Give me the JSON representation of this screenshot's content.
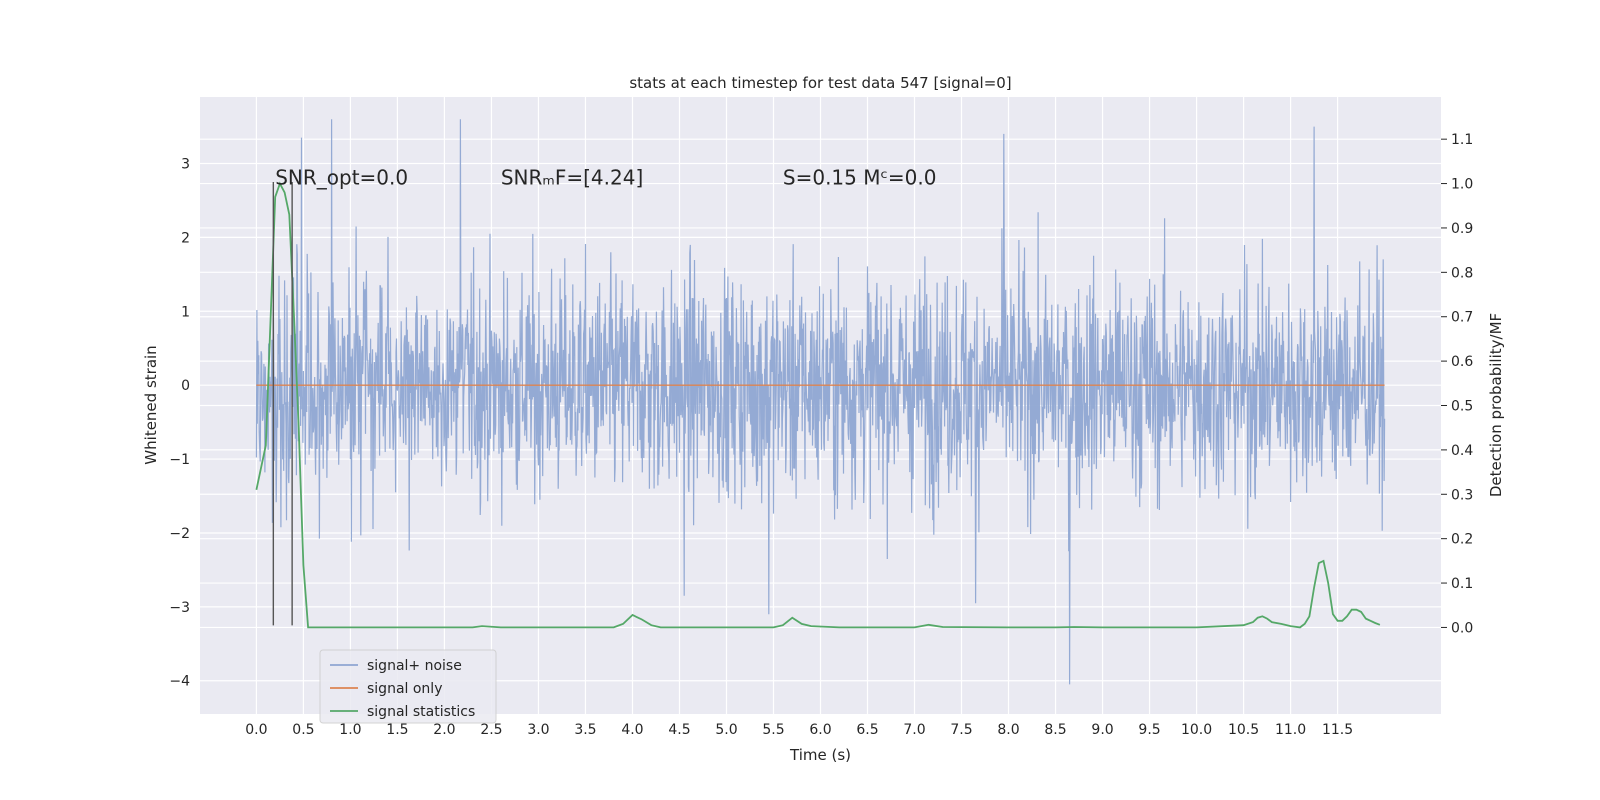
{
  "chart_data": {
    "type": "line",
    "title": "stats at each timestep for test data 547 [signal=0]",
    "xlabel": "Time (s)",
    "ylabel": "Whitened strain",
    "y2label": "Detection probability/MF",
    "xlim": [
      -0.6,
      12.6
    ],
    "ylim": [
      -4.45,
      3.9
    ],
    "y2lim": [
      -0.195,
      1.195
    ],
    "xticks": [
      0.0,
      0.5,
      1.0,
      1.5,
      2.0,
      2.5,
      3.0,
      3.5,
      4.0,
      4.5,
      5.0,
      5.5,
      6.0,
      6.5,
      7.0,
      7.5,
      8.0,
      8.5,
      9.0,
      9.5,
      10.0,
      10.5,
      11.0,
      11.5
    ],
    "xtick_labels": [
      "0.0",
      "0.5",
      "1.0",
      "1.5",
      "2.0",
      "2.5",
      "3.0",
      "3.5",
      "4.0",
      "4.5",
      "5.0",
      "5.5",
      "6.0",
      "6.5",
      "7.0",
      "7.5",
      "8.0",
      "8.5",
      "9.0",
      "9.5",
      "10.0",
      "10.5",
      "11.0",
      "11.5"
    ],
    "yticks": [
      -4,
      -3,
      -2,
      -1,
      0,
      1,
      2,
      3
    ],
    "ytick_labels": [
      "−4",
      "−3",
      "−2",
      "−1",
      "0",
      "1",
      "2",
      "3"
    ],
    "y2ticks": [
      0.0,
      0.1,
      0.2,
      0.3,
      0.4,
      0.5,
      0.6,
      0.7,
      0.8,
      0.9,
      1.0,
      1.1
    ],
    "y2tick_labels": [
      "0.0",
      "0.1",
      "0.2",
      "0.3",
      "0.4",
      "0.5",
      "0.6",
      "0.7",
      "0.8",
      "0.9",
      "1.0",
      "1.1"
    ],
    "grid": true,
    "legend": "lower-left",
    "annotations": [
      {
        "text": "SNR_opt=0.0",
        "x": 0.2,
        "y": 2.8
      },
      {
        "text": "SNRₘF=[4.24]",
        "x": 2.6,
        "y": 2.8
      },
      {
        "text": "S=0.15   Mᶜ=0.0",
        "x": 5.6,
        "y": 2.8
      }
    ],
    "vlines": [
      {
        "x": 0.18,
        "ymin": -3.25,
        "ymax": 2.75,
        "color": "#555555"
      },
      {
        "x": 0.38,
        "ymin": -3.25,
        "ymax": 2.75,
        "color": "#555555"
      }
    ],
    "series": [
      {
        "name": "signal+ noise",
        "axis": "left",
        "color": "#8fa6d2",
        "style": "dense-noise",
        "x_range": [
          0.0,
          12.0
        ],
        "envelope_min": -4.05,
        "envelope_max": 3.6,
        "notable_points": [
          {
            "x": 0.48,
            "y": 3.35
          },
          {
            "x": 0.8,
            "y": 3.6
          },
          {
            "x": 2.17,
            "y": 3.6
          },
          {
            "x": 7.95,
            "y": 3.4
          },
          {
            "x": 11.25,
            "y": 3.5
          },
          {
            "x": 8.65,
            "y": -4.05
          },
          {
            "x": 5.45,
            "y": -3.1
          },
          {
            "x": 7.65,
            "y": -2.95
          },
          {
            "x": 4.55,
            "y": -2.85
          }
        ]
      },
      {
        "name": "signal only",
        "axis": "left",
        "color": "#dd8452",
        "x": [
          0.0,
          12.0
        ],
        "y": [
          0.0,
          0.0
        ]
      },
      {
        "name": "signal statistics",
        "axis": "right",
        "color": "#55a868",
        "x": [
          0.0,
          0.05,
          0.1,
          0.15,
          0.2,
          0.25,
          0.3,
          0.35,
          0.4,
          0.45,
          0.5,
          0.55,
          0.6,
          1.0,
          1.5,
          2.0,
          2.3,
          2.4,
          2.6,
          3.0,
          3.5,
          3.8,
          3.9,
          4.0,
          4.1,
          4.2,
          4.3,
          5.0,
          5.5,
          5.6,
          5.7,
          5.8,
          5.9,
          6.2,
          7.0,
          7.15,
          7.3,
          8.0,
          8.5,
          8.7,
          9.0,
          10.0,
          10.5,
          10.6,
          10.65,
          10.7,
          10.75,
          10.8,
          10.9,
          11.0,
          11.1,
          11.15,
          11.2,
          11.25,
          11.3,
          11.35,
          11.4,
          11.45,
          11.5,
          11.55,
          11.6,
          11.65,
          11.7,
          11.75,
          11.8,
          11.85,
          11.9,
          11.95
        ],
        "y": [
          0.31,
          0.36,
          0.41,
          0.69,
          0.97,
          1.0,
          0.98,
          0.93,
          0.7,
          0.45,
          0.14,
          0.0,
          0.0,
          0.0,
          0.0,
          0.0,
          0.0,
          0.003,
          0.0,
          0.0,
          0.0,
          0.0,
          0.008,
          0.028,
          0.018,
          0.005,
          0.0,
          0.0,
          0.0,
          0.005,
          0.022,
          0.008,
          0.003,
          0.0,
          0.0,
          0.006,
          0.001,
          0.0,
          0.0,
          0.001,
          0.0,
          0.0,
          0.005,
          0.012,
          0.022,
          0.025,
          0.02,
          0.012,
          0.008,
          0.003,
          0.0,
          0.008,
          0.025,
          0.09,
          0.145,
          0.15,
          0.1,
          0.03,
          0.015,
          0.015,
          0.025,
          0.04,
          0.04,
          0.035,
          0.02,
          0.015,
          0.01,
          0.006
        ]
      }
    ]
  }
}
